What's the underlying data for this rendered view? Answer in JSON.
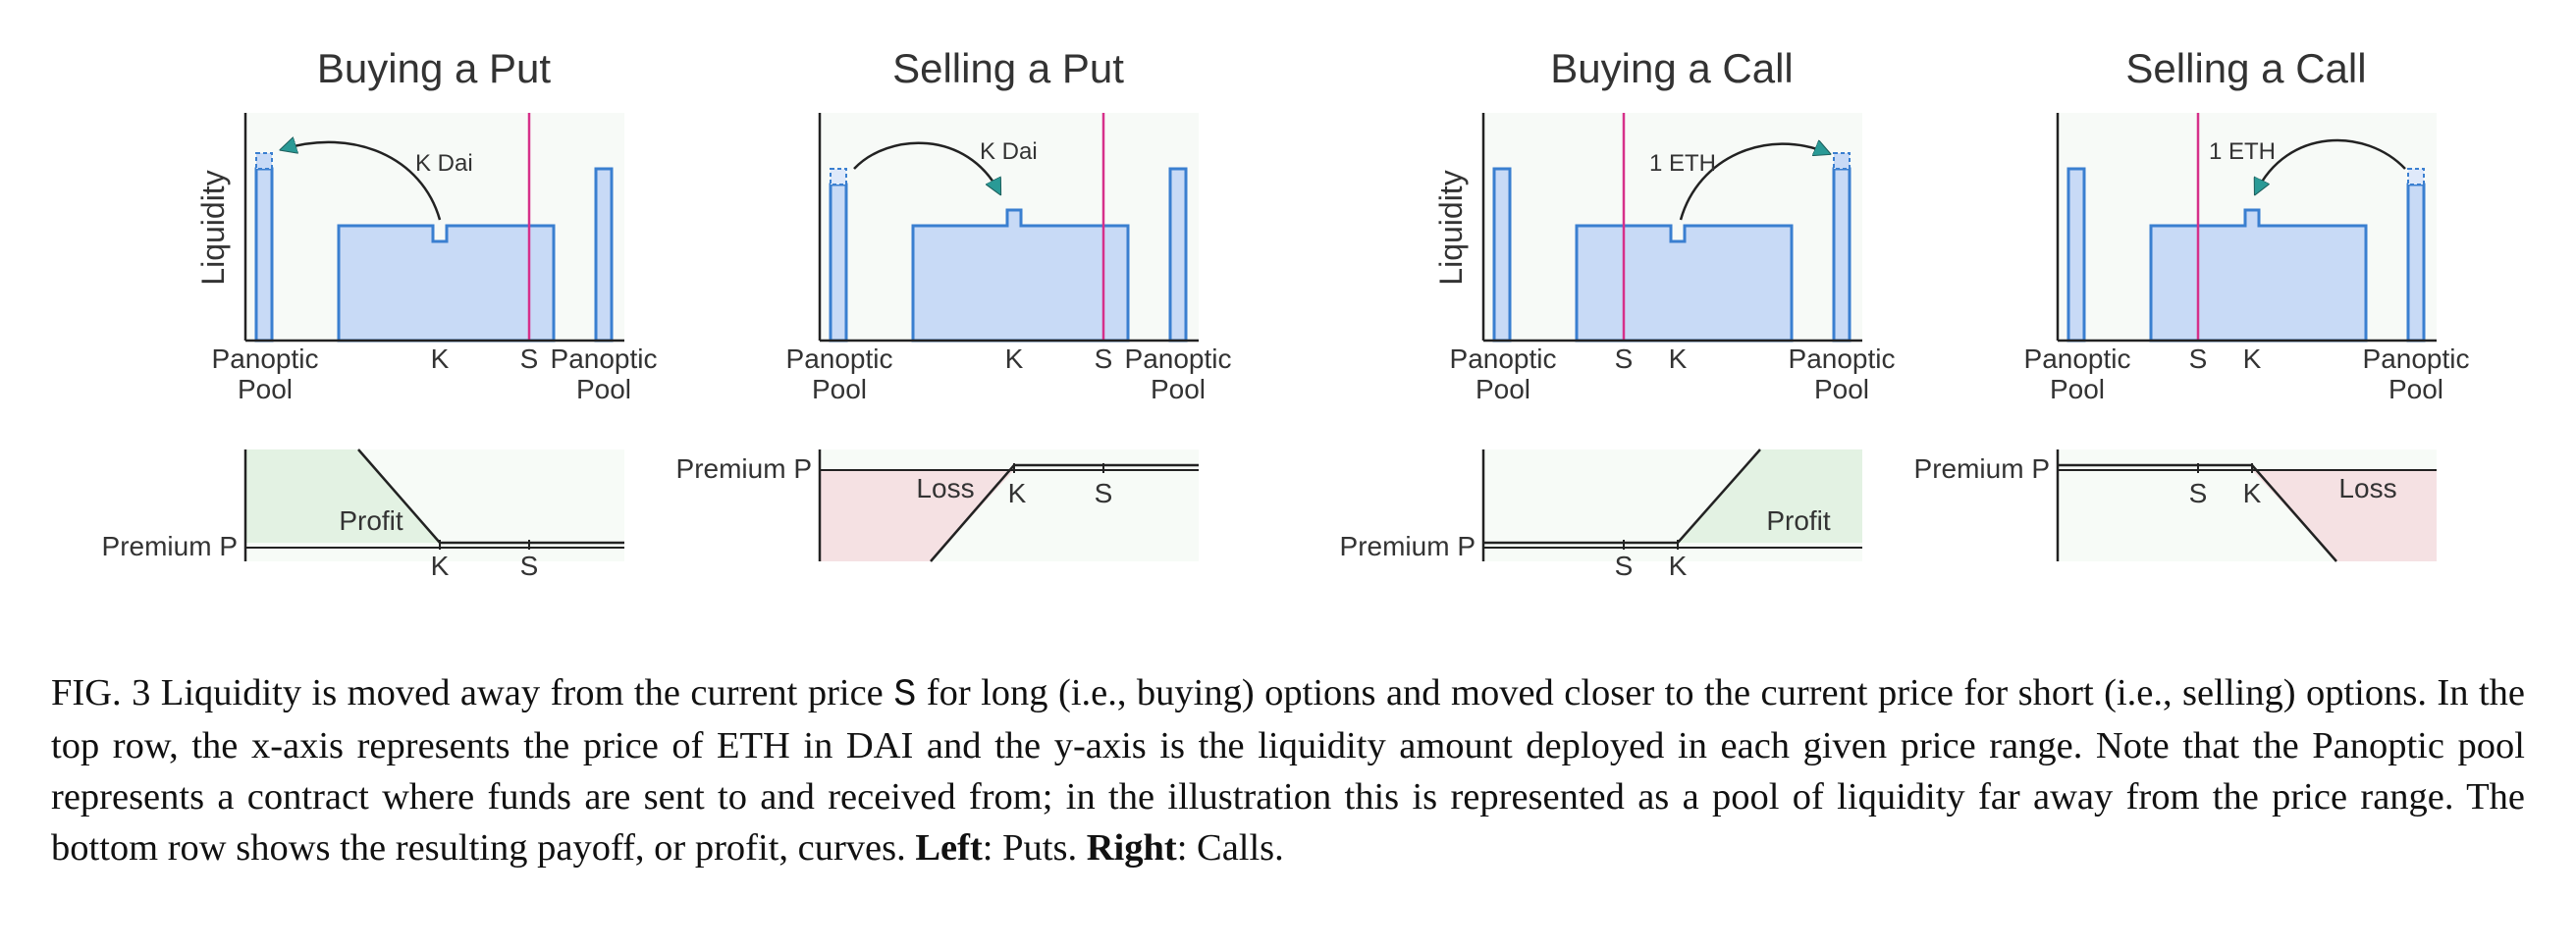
{
  "panels": [
    {
      "title": "Buying a Put",
      "arrow_label": "K Dai",
      "ylabel": "Liquidity"
    },
    {
      "title": "Selling a Put",
      "arrow_label": "K Dai"
    },
    {
      "title": "Buying a Call",
      "arrow_label": "1 ETH",
      "ylabel": "Liquidity"
    },
    {
      "title": "Selling a Call",
      "arrow_label": "1 ETH"
    }
  ],
  "axis_labels": {
    "pool_line1": "Panoptic",
    "pool_line2": "Pool",
    "strike": "K",
    "spot": "S",
    "premium": "Premium P",
    "profit": "Profit",
    "loss": "Loss"
  },
  "colors": {
    "liquidity_fill": "#c8daf6",
    "liquidity_stroke": "#3a7fd0",
    "price_line": "#d6308a",
    "profit_fill": "#e3f2e3",
    "loss_fill": "#f5e1e3",
    "neutral_fill": "#f3f8f3",
    "arrow": "#2a9a96"
  },
  "caption": {
    "fig": "FIG. 3",
    "p1": " Liquidity is moved away from the current price ",
    "s": "S",
    "p2": " for long (i.e., buying) options and moved closer to the current price for short (i.e., selling) options. In the top row, the x-axis represents the price of ETH in DAI and the y-axis is the liquidity amount deployed in each given price range. Note that the Panoptic pool represents a contract where funds are sent to and received from; in the illustration this is represented as a pool of liquidity far away from the price range. The bottom row shows the resulting payoff, or profit, curves. ",
    "left": "Left",
    "p3": ": Puts. ",
    "right": "Right",
    "p4": ": Calls."
  }
}
